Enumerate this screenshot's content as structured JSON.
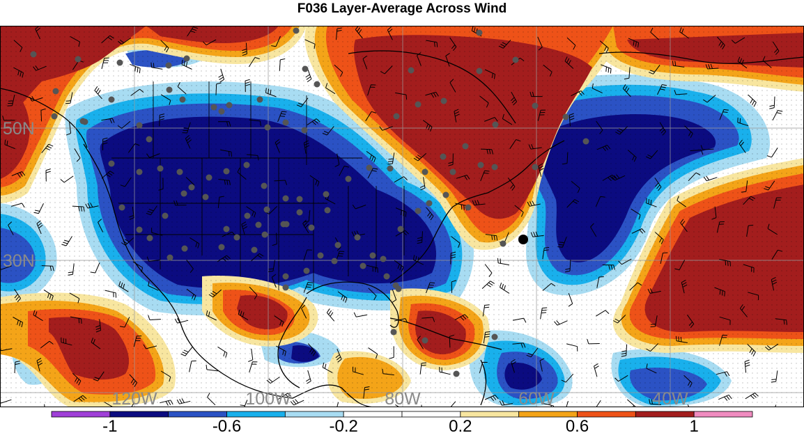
{
  "title": "F036 Layer-Average Across Wind",
  "longitude_labels": [
    "120W",
    "100W",
    "80W",
    "60W",
    "40W"
  ],
  "latitude_labels": [
    "50N",
    "30N"
  ],
  "colorbar": {
    "colors": [
      "#a040d8",
      "#0b0b80",
      "#2b52c4",
      "#19b0ec",
      "#a8dcf2",
      "#ffffff",
      "#ffffff",
      "#f8e6a0",
      "#f4a418",
      "#ee5218",
      "#a31d1d",
      "#f08cc0"
    ],
    "boundaries": [
      -1.2,
      -1.0,
      -0.8,
      -0.6,
      -0.4,
      -0.2,
      0,
      0.2,
      0.4,
      0.6,
      0.8,
      1.0,
      1.2
    ],
    "tick_labels": [
      "-1",
      "-0.6",
      "-0.2",
      "0.2",
      "0.6",
      "1"
    ]
  }
}
